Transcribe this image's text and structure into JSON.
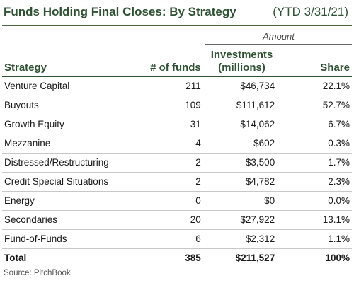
{
  "title": "Funds Holding Final Closes: By Strategy",
  "date": "(YTD 3/31/21)",
  "amount_group_label": "Amount",
  "headers": {
    "strategy": "Strategy",
    "funds": "# of funds",
    "investments": "Investments (millions)",
    "share": "Share"
  },
  "rows": [
    {
      "strategy": "Venture Capital",
      "funds": "211",
      "investments": "$46,734",
      "share": "22.1%"
    },
    {
      "strategy": "Buyouts",
      "funds": "109",
      "investments": "$111,612",
      "share": "52.7%"
    },
    {
      "strategy": "Growth Equity",
      "funds": "31",
      "investments": "$14,062",
      "share": "6.7%"
    },
    {
      "strategy": "Mezzanine",
      "funds": "4",
      "investments": "$602",
      "share": "0.3%"
    },
    {
      "strategy": "Distressed/Restructuring",
      "funds": "2",
      "investments": "$3,500",
      "share": "1.7%"
    },
    {
      "strategy": "Credit Special Situations",
      "funds": "2",
      "investments": "$4,782",
      "share": "2.3%"
    },
    {
      "strategy": "Energy",
      "funds": "0",
      "investments": "$0",
      "share": "0.0%"
    },
    {
      "strategy": "Secondaries",
      "funds": "20",
      "investments": "$27,922",
      "share": "13.1%"
    },
    {
      "strategy": "Fund-of-Funds",
      "funds": "6",
      "investments": "$2,312",
      "share": "1.1%"
    }
  ],
  "total": {
    "strategy": "Total",
    "funds": "385",
    "investments": "$211,527",
    "share": "100%"
  },
  "source": "Source: PitchBook",
  "colors": {
    "accent": "#2f5233",
    "row_divider": "#c8c8c8"
  }
}
